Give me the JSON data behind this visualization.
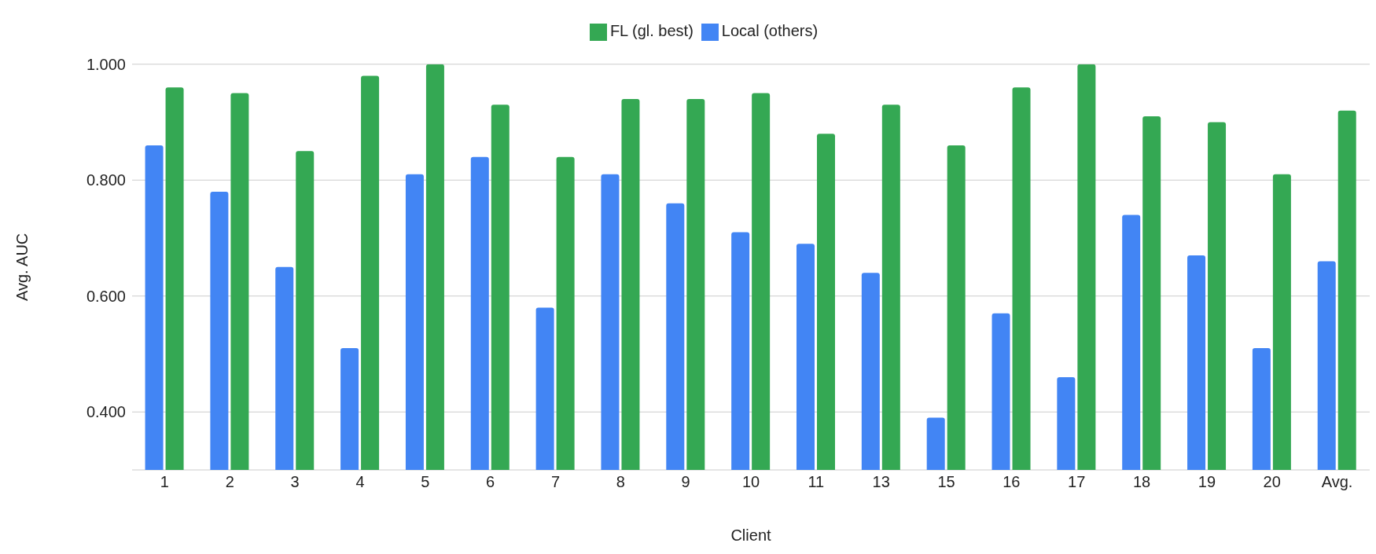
{
  "chart_data": {
    "type": "bar",
    "xlabel": "Client",
    "ylabel": "Avg. AUC",
    "categories": [
      "1",
      "2",
      "3",
      "4",
      "5",
      "6",
      "7",
      "8",
      "9",
      "10",
      "11",
      "13",
      "15",
      "16",
      "17",
      "18",
      "19",
      "20",
      "Avg."
    ],
    "series": [
      {
        "name": "Local (others)",
        "color": "#4285f4",
        "values": [
          0.86,
          0.78,
          0.65,
          0.51,
          0.81,
          0.84,
          0.58,
          0.81,
          0.76,
          0.71,
          0.69,
          0.64,
          0.39,
          0.57,
          0.46,
          0.74,
          0.67,
          0.51,
          0.66
        ]
      },
      {
        "name": "FL (gl. best)",
        "color": "#34a853",
        "values": [
          0.96,
          0.95,
          0.85,
          0.98,
          1.0,
          0.93,
          0.84,
          0.94,
          0.94,
          0.95,
          0.88,
          0.93,
          0.86,
          0.96,
          1.0,
          0.91,
          0.9,
          0.81,
          0.92
        ]
      }
    ],
    "ylim": [
      0.3,
      1.0
    ],
    "yticks": [
      {
        "value": 0.4,
        "label": "0.400"
      },
      {
        "value": 0.6,
        "label": "0.600"
      },
      {
        "value": 0.8,
        "label": "0.800"
      },
      {
        "value": 1.0,
        "label": "1.000"
      }
    ],
    "grid": "y",
    "legend": "top"
  }
}
